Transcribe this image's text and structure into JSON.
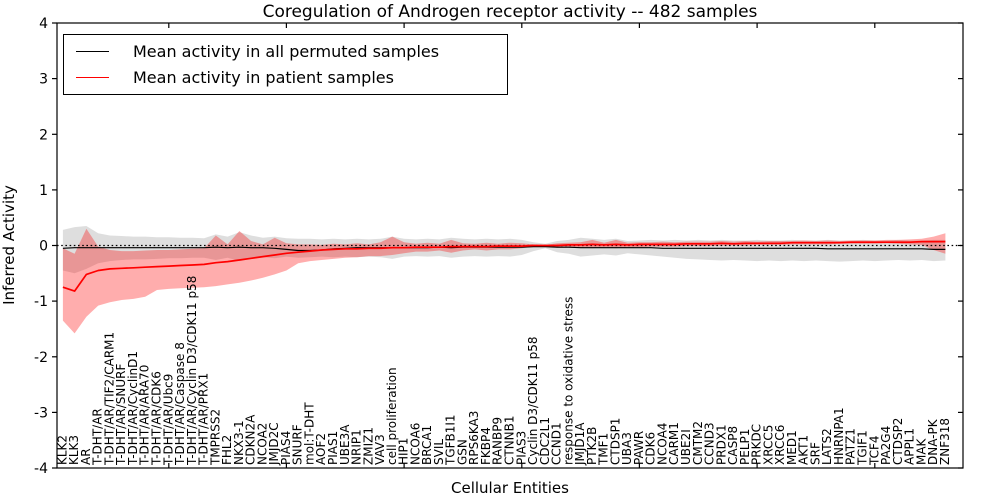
{
  "figure": {
    "title": "Coregulation of Androgen receptor activity -- 482 samples",
    "xlabel": "Cellular Entities",
    "ylabel": "Inferred Activity"
  },
  "legend": {
    "items": [
      {
        "label": "Mean activity in all permuted samples",
        "color": "#000000"
      },
      {
        "label": "Mean activity in patient samples",
        "color": "#ff0000"
      }
    ]
  },
  "chart_data": {
    "type": "line",
    "title": "Coregulation of Androgen receptor activity -- 482 samples",
    "xlabel": "Cellular Entities",
    "ylabel": "Inferred Activity",
    "ylim": [
      -4,
      4
    ],
    "yticks": [
      -4,
      -3,
      -2,
      -1,
      0,
      1,
      2,
      3,
      4
    ],
    "grid": false,
    "legend_position": "upper left",
    "zero_line_style": "dotted",
    "colors": {
      "permuted_line": "#000000",
      "patient_line": "#ff0000",
      "permuted_band": "#000000",
      "patient_band": "#ff0000"
    },
    "categories": [
      "KLK2",
      "KLK3",
      "AR",
      "T-DHT/AR",
      "T-DHT/AR/TIF2/CARM1",
      "T-DHT/AR/SNURF",
      "T-DHT/AR/CyclinD1",
      "T-DHT/AR/ARA70",
      "T-DHT/AR/CDK6",
      "T-DHT/AR/Ubc9",
      "T-DHT/AR/Caspase 8",
      "T-DHT/AR/Cyclin D3/CDK11 p58",
      "T-DHT/AR/PRX1",
      "TMPRSS2",
      "FHL2",
      "NKX3-1",
      "CDKN2A",
      "NCOA2",
      "JMJD2C",
      "PIAS4",
      "SNURF",
      "mol:T-DHT",
      "AOF2",
      "PIAS1",
      "UBE3A",
      "NRIP1",
      "ZMIZ1",
      "VAV3",
      "cell proliferation",
      "HIP1",
      "NCOA6",
      "BRCA1",
      "SVIL",
      "TGFB1I1",
      "GSN",
      "RPS6KA3",
      "FKBP4",
      "RANBP9",
      "CTNNB1",
      "PIAS3",
      "Cyclin D3/CDK11 p58",
      "CDC2L1",
      "CCND1",
      "response to oxidative stress",
      "JMJD1A",
      "PTK2B",
      "TMF1",
      "CTDSP1",
      "UBA3",
      "PAWR",
      "CDK6",
      "NCOA4",
      "CARM1",
      "UBE2I",
      "CMTM2",
      "CCND3",
      "PRDX1",
      "CASP8",
      "PELP1",
      "PRKDC",
      "XRCC5",
      "XRCC6",
      "MED1",
      "AKT1",
      "SRF",
      "LATS2",
      "HNRNPA1",
      "PATZ1",
      "TGIF1",
      "TCF4",
      "PA2G4",
      "CTDSP2",
      "APPL1",
      "MAK",
      "DNA-PK",
      "ZNF318"
    ],
    "series": [
      {
        "name": "Mean activity in all permuted samples",
        "color": "#000000",
        "values": [
          -0.05,
          -0.04,
          -0.04,
          -0.04,
          -0.04,
          -0.04,
          -0.04,
          -0.04,
          -0.04,
          -0.04,
          -0.04,
          -0.04,
          -0.04,
          -0.03,
          -0.04,
          -0.03,
          -0.04,
          -0.04,
          -0.05,
          -0.07,
          -0.09,
          -0.09,
          -0.08,
          -0.06,
          -0.05,
          -0.04,
          -0.04,
          -0.04,
          -0.04,
          -0.04,
          -0.04,
          -0.04,
          -0.03,
          -0.04,
          -0.03,
          -0.03,
          -0.03,
          -0.03,
          -0.03,
          -0.03,
          -0.02,
          -0.02,
          -0.03,
          -0.03,
          -0.04,
          -0.04,
          -0.04,
          -0.04,
          -0.04,
          -0.04,
          -0.04,
          -0.05,
          -0.05,
          -0.05,
          -0.05,
          -0.05,
          -0.05,
          -0.05,
          -0.05,
          -0.05,
          -0.05,
          -0.05,
          -0.05,
          -0.05,
          -0.05,
          -0.06,
          -0.06,
          -0.06,
          -0.06,
          -0.06,
          -0.06,
          -0.06,
          -0.06,
          -0.06,
          -0.07,
          -0.07
        ]
      },
      {
        "name": "Mean activity in patient samples",
        "color": "#ff0000",
        "values": [
          -0.75,
          -0.82,
          -0.52,
          -0.45,
          -0.42,
          -0.41,
          -0.4,
          -0.39,
          -0.38,
          -0.37,
          -0.36,
          -0.35,
          -0.34,
          -0.31,
          -0.29,
          -0.26,
          -0.23,
          -0.2,
          -0.17,
          -0.14,
          -0.12,
          -0.1,
          -0.08,
          -0.07,
          -0.06,
          -0.06,
          -0.05,
          -0.05,
          -0.04,
          -0.04,
          -0.03,
          -0.03,
          -0.03,
          -0.02,
          -0.02,
          -0.02,
          -0.02,
          -0.01,
          -0.01,
          -0.01,
          0,
          0,
          0,
          0.01,
          0.01,
          0.02,
          0.01,
          0.02,
          0.01,
          0.02,
          0.02,
          0.02,
          0.02,
          0.03,
          0.03,
          0.03,
          0.04,
          0.03,
          0.04,
          0.04,
          0.04,
          0.04,
          0.05,
          0.05,
          0.05,
          0.05,
          0.05,
          0.06,
          0.06,
          0.06,
          0.06,
          0.06,
          0.06,
          0.07,
          0.07,
          0.07
        ]
      }
    ],
    "bands": [
      {
        "name": "permuted samples std band",
        "color": "#000000",
        "opacity": 0.13,
        "upper": [
          0.28,
          0.33,
          0.35,
          0.22,
          0.18,
          0.17,
          0.16,
          0.16,
          0.15,
          0.15,
          0.14,
          0.14,
          0.13,
          0.2,
          0.16,
          0.24,
          0.18,
          0.14,
          0.16,
          0.13,
          0.12,
          0.12,
          0.11,
          0.12,
          0.11,
          0.12,
          0.11,
          0.12,
          0.16,
          0.12,
          0.11,
          0.12,
          0.11,
          0.14,
          0.12,
          0.11,
          0.12,
          0.11,
          0.12,
          0.1,
          0.06,
          0.03,
          0.08,
          0.1,
          0.14,
          0.12,
          0.1,
          0.12,
          0.08,
          0.09,
          0.1,
          0.09,
          0.1,
          0.09,
          0.1,
          0.09,
          0.1,
          0.09,
          0.09,
          0.1,
          0.09,
          0.09,
          0.1,
          0.09,
          0.09,
          0.1,
          0.09,
          0.09,
          0.1,
          0.09,
          0.09,
          0.1,
          0.09,
          0.09,
          0.1,
          0.1
        ],
        "lower": [
          -0.45,
          -0.5,
          -0.42,
          -0.32,
          -0.28,
          -0.26,
          -0.25,
          -0.25,
          -0.24,
          -0.23,
          -0.23,
          -0.22,
          -0.22,
          -0.26,
          -0.22,
          -0.28,
          -0.24,
          -0.21,
          -0.23,
          -0.2,
          -0.22,
          -0.21,
          -0.2,
          -0.21,
          -0.2,
          -0.21,
          -0.2,
          -0.21,
          -0.24,
          -0.2,
          -0.19,
          -0.2,
          -0.19,
          -0.22,
          -0.2,
          -0.19,
          -0.2,
          -0.19,
          -0.2,
          -0.17,
          -0.1,
          -0.05,
          -0.12,
          -0.15,
          -0.2,
          -0.18,
          -0.16,
          -0.18,
          -0.14,
          -0.16,
          -0.18,
          -0.2,
          -0.22,
          -0.24,
          -0.25,
          -0.26,
          -0.27,
          -0.26,
          -0.27,
          -0.28,
          -0.27,
          -0.28,
          -0.27,
          -0.28,
          -0.27,
          -0.28,
          -0.29,
          -0.28,
          -0.27,
          -0.28,
          -0.27,
          -0.26,
          -0.27,
          -0.26,
          -0.28,
          -0.27
        ]
      },
      {
        "name": "patient samples std band",
        "color": "#ff0000",
        "opacity": 0.32,
        "upper": [
          -0.05,
          -0.15,
          0.3,
          -0.02,
          -0.08,
          -0.1,
          -0.1,
          -0.09,
          -0.08,
          -0.08,
          -0.07,
          -0.06,
          -0.05,
          0.18,
          0.02,
          0.26,
          0.08,
          0.02,
          0.14,
          0.04,
          0.02,
          0.02,
          0.01,
          0.03,
          0.02,
          0.04,
          0.02,
          0.06,
          0.16,
          0.06,
          0.03,
          0.05,
          0.03,
          0.1,
          0.04,
          0.03,
          0.05,
          0.03,
          0.05,
          0.04,
          0.02,
          0.01,
          0.04,
          0.05,
          0.06,
          0.1,
          0.05,
          0.1,
          0.05,
          0.06,
          0.06,
          0.07,
          0.06,
          0.07,
          0.07,
          0.07,
          0.08,
          0.07,
          0.08,
          0.07,
          0.08,
          0.08,
          0.08,
          0.09,
          0.08,
          0.09,
          0.08,
          0.09,
          0.09,
          0.09,
          0.1,
          0.1,
          0.11,
          0.12,
          0.16,
          0.22
        ],
        "lower": [
          -1.35,
          -1.58,
          -1.28,
          -1.08,
          -1.02,
          -0.98,
          -0.96,
          -0.92,
          -0.8,
          -0.78,
          -0.77,
          -0.76,
          -0.75,
          -0.73,
          -0.7,
          -0.67,
          -0.63,
          -0.58,
          -0.52,
          -0.45,
          -0.32,
          -0.28,
          -0.26,
          -0.24,
          -0.22,
          -0.21,
          -0.19,
          -0.19,
          -0.17,
          -0.14,
          -0.11,
          -0.11,
          -0.09,
          -0.13,
          -0.09,
          -0.07,
          -0.09,
          -0.07,
          -0.07,
          -0.05,
          -0.02,
          -0.01,
          -0.04,
          -0.04,
          -0.04,
          -0.05,
          -0.03,
          -0.05,
          -0.03,
          -0.03,
          -0.02,
          -0.02,
          -0.02,
          -0.01,
          -0.01,
          -0.01,
          0,
          0,
          0,
          0.01,
          0.01,
          0.01,
          0.02,
          0.02,
          0.02,
          0.02,
          0.03,
          0.03,
          0.03,
          0.03,
          0.04,
          0.03,
          0.02,
          0.01,
          -0.08,
          -0.15
        ]
      }
    ]
  }
}
